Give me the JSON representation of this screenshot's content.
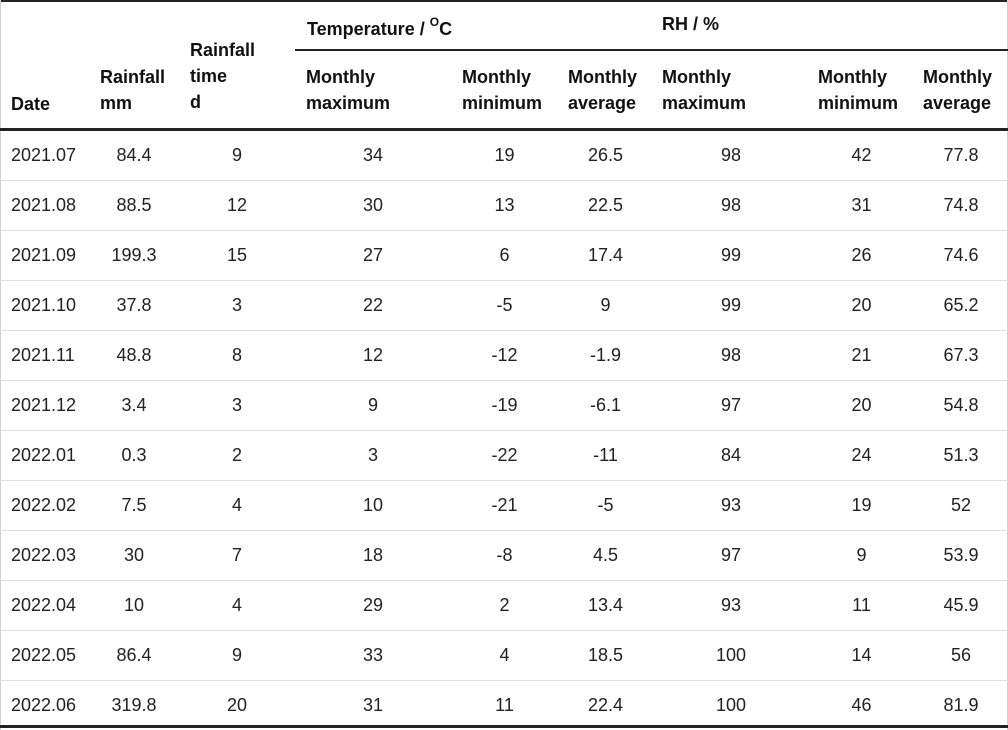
{
  "header": {
    "date": "Date",
    "rainfall": [
      "Rainfall",
      "mm"
    ],
    "rainfall_time": [
      "Rainfall",
      "time",
      "d"
    ],
    "temperature_group": "Temperature / ",
    "temperature_unit_sup": "O",
    "temperature_unit": "C",
    "rh_group": "RH / %",
    "temp_max": [
      "Monthly",
      "maximum"
    ],
    "temp_min": [
      "Monthly",
      "minimum"
    ],
    "temp_avg": [
      "Monthly",
      "average"
    ],
    "rh_max": [
      "Monthly",
      "maximum"
    ],
    "rh_min": [
      "Monthly",
      "minimum"
    ],
    "rh_avg": [
      "Monthly",
      "average"
    ]
  },
  "rows": [
    [
      "2021.07",
      "84.4",
      "9",
      "34",
      "19",
      "26.5",
      "98",
      "42",
      "77.8"
    ],
    [
      "2021.08",
      "88.5",
      "12",
      "30",
      "13",
      "22.5",
      "98",
      "31",
      "74.8"
    ],
    [
      "2021.09",
      "199.3",
      "15",
      "27",
      "6",
      "17.4",
      "99",
      "26",
      "74.6"
    ],
    [
      "2021.10",
      "37.8",
      "3",
      "22",
      "-5",
      "9",
      "99",
      "20",
      "65.2"
    ],
    [
      "2021.11",
      "48.8",
      "8",
      "12",
      "-12",
      "-1.9",
      "98",
      "21",
      "67.3"
    ],
    [
      "2021.12",
      "3.4",
      "3",
      "9",
      "-19",
      "-6.1",
      "97",
      "20",
      "54.8"
    ],
    [
      "2022.01",
      "0.3",
      "2",
      "3",
      "-22",
      "-11",
      "84",
      "24",
      "51.3"
    ],
    [
      "2022.02",
      "7.5",
      "4",
      "10",
      "-21",
      "-5",
      "93",
      "19",
      "52"
    ],
    [
      "2022.03",
      "30",
      "7",
      "18",
      "-8",
      "4.5",
      "97",
      "9",
      "53.9"
    ],
    [
      "2022.04",
      "10",
      "4",
      "29",
      "2",
      "13.4",
      "93",
      "11",
      "45.9"
    ],
    [
      "2022.05",
      "86.4",
      "9",
      "33",
      "4",
      "18.5",
      "100",
      "14",
      "56"
    ],
    [
      "2022.06",
      "319.8",
      "20",
      "31",
      "11",
      "22.4",
      "100",
      "46",
      "81.9"
    ]
  ]
}
